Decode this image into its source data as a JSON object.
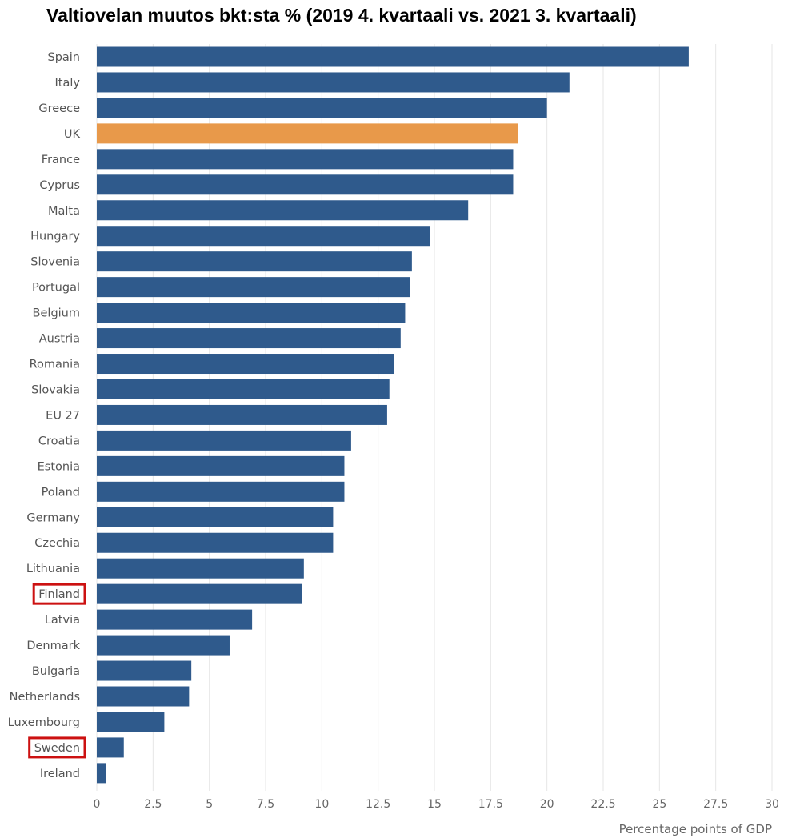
{
  "chart_data": {
    "type": "bar",
    "orientation": "horizontal",
    "title": "Valtiovelan muutos bkt:sta % (2019 4. kvartaali vs. 2021 3. kvartaali)",
    "xlabel": "Percentage points of GDP",
    "ylabel": "",
    "xlim": [
      0,
      30
    ],
    "ticks": [
      0,
      2.5,
      5,
      7.5,
      10,
      12.5,
      15,
      17.5,
      20,
      22.5,
      25,
      27.5,
      30
    ],
    "tick_labels": [
      "0",
      "2.5",
      "5",
      "7.5",
      "10",
      "12.5",
      "15",
      "17.5",
      "20",
      "22.5",
      "25",
      "27.5",
      "30"
    ],
    "grid": "vertical",
    "categories": [
      "Spain",
      "Italy",
      "Greece",
      "UK",
      "France",
      "Cyprus",
      "Malta",
      "Hungary",
      "Slovenia",
      "Portugal",
      "Belgium",
      "Austria",
      "Romania",
      "Slovakia",
      "EU 27",
      "Croatia",
      "Estonia",
      "Poland",
      "Germany",
      "Czechia",
      "Lithuania",
      "Finland",
      "Latvia",
      "Denmark",
      "Bulgaria",
      "Netherlands",
      "Luxembourg",
      "Sweden",
      "Ireland"
    ],
    "values": [
      26.3,
      21.0,
      20.0,
      18.7,
      18.5,
      18.5,
      16.5,
      14.8,
      14.0,
      13.9,
      13.7,
      13.5,
      13.2,
      13.0,
      12.9,
      11.3,
      11.0,
      11.0,
      10.5,
      10.5,
      9.2,
      9.1,
      6.9,
      5.9,
      4.2,
      4.1,
      3.0,
      1.2,
      0.4
    ],
    "highlighted_bar": "UK",
    "boxed_labels": [
      "Finland",
      "Sweden"
    ],
    "colors": {
      "bar": "#2f5a8c",
      "highlight_bar": "#e8994a",
      "box": "#cc1111"
    }
  }
}
